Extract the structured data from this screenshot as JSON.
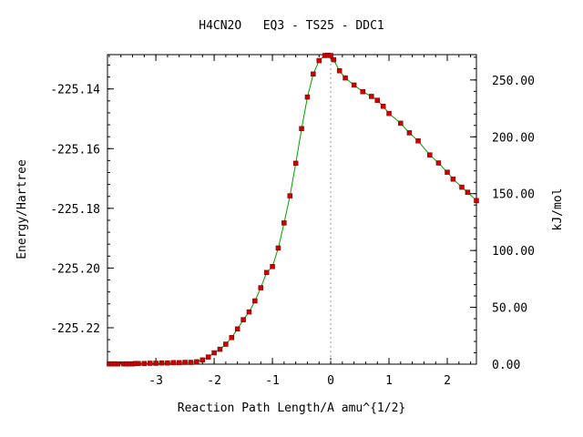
{
  "chart_data": {
    "type": "line",
    "title": "H4CN2O   EQ3 - TS25 - DDC1",
    "xlabel": "Reaction Path Length/A amu^{1/2}",
    "ylabel": "Energy/Hartree",
    "y2label": "kJ/mol",
    "xlim": [
      -3.83,
      2.5
    ],
    "ylim": [
      -225.2322,
      -225.1285
    ],
    "y2lim": [
      0.0,
      272.3
    ],
    "x_ticks": [
      -3,
      -2,
      -1,
      0,
      1,
      2
    ],
    "x_tick_labels": [
      "-3",
      "-2",
      "-1",
      "0",
      "1",
      "2"
    ],
    "y_ticks": [
      -225.14,
      -225.16,
      -225.18,
      -225.2,
      -225.22
    ],
    "y_tick_labels": [
      "-225.14",
      "-225.16",
      "-225.18",
      "-225.20",
      "-225.22"
    ],
    "y2_ticks": [
      0,
      50,
      100,
      150,
      200,
      250
    ],
    "y2_tick_labels": [
      "0.00",
      "50.00",
      "100.00",
      "150.00",
      "200.00",
      "250.00"
    ],
    "ts_marker_x": 0,
    "grid": false,
    "line_color": "#00a000",
    "marker_color": "#cc0000",
    "x": [
      -3.8,
      -3.75,
      -3.7,
      -3.65,
      -3.55,
      -3.5,
      -3.45,
      -3.4,
      -3.35,
      -3.3,
      -3.2,
      -3.1,
      -3.0,
      -2.9,
      -2.8,
      -2.7,
      -2.6,
      -2.5,
      -2.4,
      -2.3,
      -2.2,
      -2.1,
      -2.0,
      -1.9,
      -1.8,
      -1.7,
      -1.6,
      -1.5,
      -1.4,
      -1.3,
      -1.2,
      -1.1,
      -1.0,
      -0.9,
      -0.8,
      -0.7,
      -0.6,
      -0.5,
      -0.4,
      -0.3,
      -0.2,
      -0.1,
      -0.05,
      0.0,
      0.05,
      0.15,
      0.25,
      0.4,
      0.55,
      0.7,
      0.8,
      0.9,
      1.0,
      1.2,
      1.35,
      1.5,
      1.7,
      1.85,
      2.0,
      2.1,
      2.25,
      2.35,
      2.5
    ],
    "y": [
      -225.2321,
      -225.2321,
      -225.2321,
      -225.2321,
      -225.2321,
      -225.2321,
      -225.2321,
      -225.2321,
      -225.232,
      -225.232,
      -225.232,
      -225.2319,
      -225.2319,
      -225.2318,
      -225.2318,
      -225.2317,
      -225.2317,
      -225.2316,
      -225.2316,
      -225.2314,
      -225.2308,
      -225.2298,
      -225.2284,
      -225.2272,
      -225.2255,
      -225.2233,
      -225.2204,
      -225.2173,
      -225.2147,
      -225.211,
      -225.2066,
      -225.2015,
      -225.1995,
      -225.1933,
      -225.1849,
      -225.1758,
      -225.1649,
      -225.1533,
      -225.1427,
      -225.135,
      -225.1305,
      -225.1288,
      -225.1287,
      -225.1288,
      -225.1302,
      -225.1339,
      -225.1363,
      -225.1387,
      -225.1409,
      -225.1425,
      -225.1438,
      -225.1458,
      -225.1482,
      -225.1515,
      -225.1547,
      -225.1574,
      -225.1621,
      -225.1648,
      -225.1679,
      -225.1702,
      -225.1729,
      -225.1746,
      -225.1774
    ]
  }
}
